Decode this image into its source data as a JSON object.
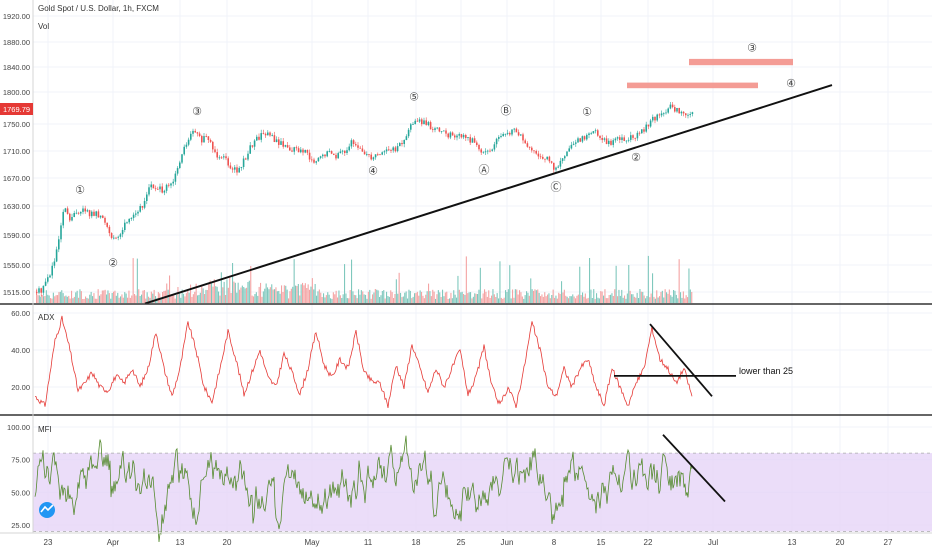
{
  "chart_data": [
    {
      "type": "candlestick",
      "title": "Gold Spot / U.S. Dollar, 1h, FXCM",
      "subtitle": "Vol",
      "ylim": [
        1500,
        1925
      ],
      "y_ticks": [
        "1920.00",
        "1880.00",
        "1840.00",
        "1800.00",
        "1750.00",
        "1710.00",
        "1670.00",
        "1630.00",
        "1590.00",
        "1550.00",
        "1515.00"
      ],
      "last_price": "1769.79",
      "x_ticks": [
        "23",
        "Apr",
        "13",
        "20",
        "May",
        "11",
        "18",
        "25",
        "Jun",
        "8",
        "15",
        "22",
        "Jul",
        "13",
        "20",
        "27"
      ],
      "price_path": [
        [
          20,
          1548
        ],
        [
          32,
          1512
        ],
        [
          40,
          1518
        ],
        [
          48,
          1535
        ],
        [
          55,
          1560
        ],
        [
          64,
          1630
        ],
        [
          68,
          1610
        ],
        [
          72,
          1615
        ],
        [
          80,
          1626
        ],
        [
          88,
          1620
        ],
        [
          95,
          1618
        ],
        [
          103,
          1612
        ],
        [
          110,
          1592
        ],
        [
          116,
          1580
        ],
        [
          122,
          1600
        ],
        [
          128,
          1614
        ],
        [
          135,
          1622
        ],
        [
          142,
          1628
        ],
        [
          148,
          1660
        ],
        [
          156,
          1652
        ],
        [
          165,
          1655
        ],
        [
          172,
          1661
        ],
        [
          178,
          1690
        ],
        [
          185,
          1720
        ],
        [
          193,
          1740
        ],
        [
          200,
          1727
        ],
        [
          208,
          1728
        ],
        [
          215,
          1705
        ],
        [
          222,
          1705
        ],
        [
          230,
          1688
        ],
        [
          238,
          1680
        ],
        [
          244,
          1698
        ],
        [
          250,
          1718
        ],
        [
          257,
          1730
        ],
        [
          263,
          1738
        ],
        [
          270,
          1732
        ],
        [
          278,
          1722
        ],
        [
          285,
          1718
        ],
        [
          292,
          1712
        ],
        [
          300,
          1711
        ],
        [
          307,
          1704
        ],
        [
          313,
          1690
        ],
        [
          320,
          1701
        ],
        [
          328,
          1708
        ],
        [
          335,
          1704
        ],
        [
          342,
          1708
        ],
        [
          350,
          1722
        ],
        [
          357,
          1714
        ],
        [
          364,
          1708
        ],
        [
          370,
          1702
        ],
        [
          376,
          1706
        ],
        [
          384,
          1711
        ],
        [
          392,
          1712
        ],
        [
          400,
          1718
        ],
        [
          408,
          1740
        ],
        [
          414,
          1758
        ],
        [
          420,
          1753
        ],
        [
          428,
          1748
        ],
        [
          436,
          1740
        ],
        [
          443,
          1737
        ],
        [
          450,
          1733
        ],
        [
          458,
          1733
        ],
        [
          465,
          1730
        ],
        [
          472,
          1725
        ],
        [
          478,
          1715
        ],
        [
          485,
          1705
        ],
        [
          492,
          1718
        ],
        [
          500,
          1730
        ],
        [
          507,
          1735
        ],
        [
          514,
          1742
        ],
        [
          520,
          1731
        ],
        [
          527,
          1715
        ],
        [
          532,
          1706
        ],
        [
          538,
          1704
        ],
        [
          545,
          1700
        ],
        [
          551,
          1688
        ],
        [
          557,
          1685
        ],
        [
          562,
          1698
        ],
        [
          568,
          1712
        ],
        [
          575,
          1722
        ],
        [
          582,
          1730
        ],
        [
          589,
          1738
        ],
        [
          596,
          1738
        ],
        [
          603,
          1728
        ],
        [
          609,
          1722
        ],
        [
          615,
          1726
        ],
        [
          622,
          1730
        ],
        [
          628,
          1728
        ],
        [
          634,
          1730
        ],
        [
          640,
          1737
        ],
        [
          646,
          1749
        ],
        [
          652,
          1757
        ],
        [
          658,
          1761
        ],
        [
          664,
          1770
        ],
        [
          670,
          1777
        ],
        [
          676,
          1771
        ],
        [
          682,
          1765
        ],
        [
          687,
          1763
        ],
        [
          692,
          1770
        ]
      ],
      "waves": [
        {
          "label": "①",
          "x": 80,
          "y": 1648
        },
        {
          "label": "②",
          "x": 113,
          "y": 1548
        },
        {
          "label": "③",
          "x": 197,
          "y": 1764
        },
        {
          "label": "④",
          "x": 373,
          "y": 1675
        },
        {
          "label": "⑤",
          "x": 414,
          "y": 1787
        },
        {
          "label": "Ⓐ",
          "x": 484,
          "y": 1677
        },
        {
          "label": "Ⓑ",
          "x": 506,
          "y": 1766
        },
        {
          "label": "Ⓒ",
          "x": 556,
          "y": 1652
        },
        {
          "label": "①",
          "x": 587,
          "y": 1763
        },
        {
          "label": "②",
          "x": 636,
          "y": 1695
        },
        {
          "label": "③",
          "x": 752,
          "y": 1865
        },
        {
          "label": "④",
          "x": 791,
          "y": 1808
        }
      ],
      "trendline": [
        [
          145,
          1500
        ],
        [
          832,
          1811
        ]
      ],
      "target_zones": [
        {
          "x1": 627,
          "x2": 758,
          "y1": 1806,
          "y2": 1815,
          "color": "#f28b82"
        },
        {
          "x1": 689,
          "x2": 793,
          "y1": 1843,
          "y2": 1853,
          "color": "#f28b82"
        }
      ]
    },
    {
      "type": "line",
      "title": "ADX",
      "ylim": [
        5,
        65
      ],
      "y_ticks": [
        "60.00",
        "40.00",
        "20.00"
      ],
      "line_color": "#e53935",
      "annotation": "lower than 25",
      "level": 25,
      "pivots": [
        [
          35,
          15
        ],
        [
          45,
          10
        ],
        [
          55,
          45
        ],
        [
          62,
          57
        ],
        [
          70,
          40
        ],
        [
          78,
          18
        ],
        [
          85,
          22
        ],
        [
          92,
          28
        ],
        [
          100,
          20
        ],
        [
          108,
          18
        ],
        [
          116,
          26
        ],
        [
          124,
          22
        ],
        [
          132,
          30
        ],
        [
          140,
          20
        ],
        [
          148,
          30
        ],
        [
          156,
          50
        ],
        [
          164,
          30
        ],
        [
          172,
          15
        ],
        [
          180,
          30
        ],
        [
          188,
          55
        ],
        [
          196,
          40
        ],
        [
          204,
          20
        ],
        [
          212,
          12
        ],
        [
          220,
          30
        ],
        [
          228,
          50
        ],
        [
          236,
          35
        ],
        [
          244,
          16
        ],
        [
          252,
          28
        ],
        [
          260,
          40
        ],
        [
          268,
          25
        ],
        [
          276,
          20
        ],
        [
          284,
          38
        ],
        [
          292,
          28
        ],
        [
          300,
          16
        ],
        [
          308,
          30
        ],
        [
          316,
          50
        ],
        [
          324,
          32
        ],
        [
          332,
          25
        ],
        [
          340,
          35
        ],
        [
          348,
          30
        ],
        [
          356,
          50
        ],
        [
          364,
          28
        ],
        [
          372,
          23
        ],
        [
          380,
          22
        ],
        [
          388,
          10
        ],
        [
          396,
          32
        ],
        [
          404,
          20
        ],
        [
          412,
          43
        ],
        [
          420,
          30
        ],
        [
          428,
          17
        ],
        [
          436,
          30
        ],
        [
          444,
          20
        ],
        [
          452,
          30
        ],
        [
          460,
          40
        ],
        [
          468,
          16
        ],
        [
          476,
          25
        ],
        [
          484,
          42
        ],
        [
          492,
          20
        ],
        [
          500,
          10
        ],
        [
          508,
          20
        ],
        [
          516,
          10
        ],
        [
          524,
          30
        ],
        [
          532,
          55
        ],
        [
          540,
          40
        ],
        [
          548,
          20
        ],
        [
          556,
          15
        ],
        [
          564,
          30
        ],
        [
          572,
          20
        ],
        [
          580,
          30
        ],
        [
          588,
          35
        ],
        [
          596,
          20
        ],
        [
          604,
          10
        ],
        [
          612,
          30
        ],
        [
          620,
          20
        ],
        [
          628,
          10
        ],
        [
          636,
          22
        ],
        [
          644,
          30
        ],
        [
          652,
          52
        ],
        [
          660,
          35
        ],
        [
          668,
          30
        ],
        [
          676,
          22
        ],
        [
          684,
          30
        ],
        [
          692,
          15
        ]
      ]
    },
    {
      "type": "line",
      "title": "MFI",
      "ylim": [
        15,
        105
      ],
      "y_ticks": [
        "100.00",
        "75.00",
        "50.00",
        "25.00"
      ],
      "band": [
        20,
        80
      ],
      "line_color": "#558b2f",
      "band_color": "#e6d5f7",
      "last_value": "41.8"
    }
  ],
  "overlays": {
    "adx_falling_line": [
      [
        650,
        54
      ],
      [
        712,
        15
      ]
    ],
    "adx_level_line": [
      [
        614,
        26
      ],
      [
        736,
        26
      ]
    ],
    "mfi_falling_line": [
      [
        663,
        94
      ],
      [
        725,
        43
      ]
    ]
  }
}
